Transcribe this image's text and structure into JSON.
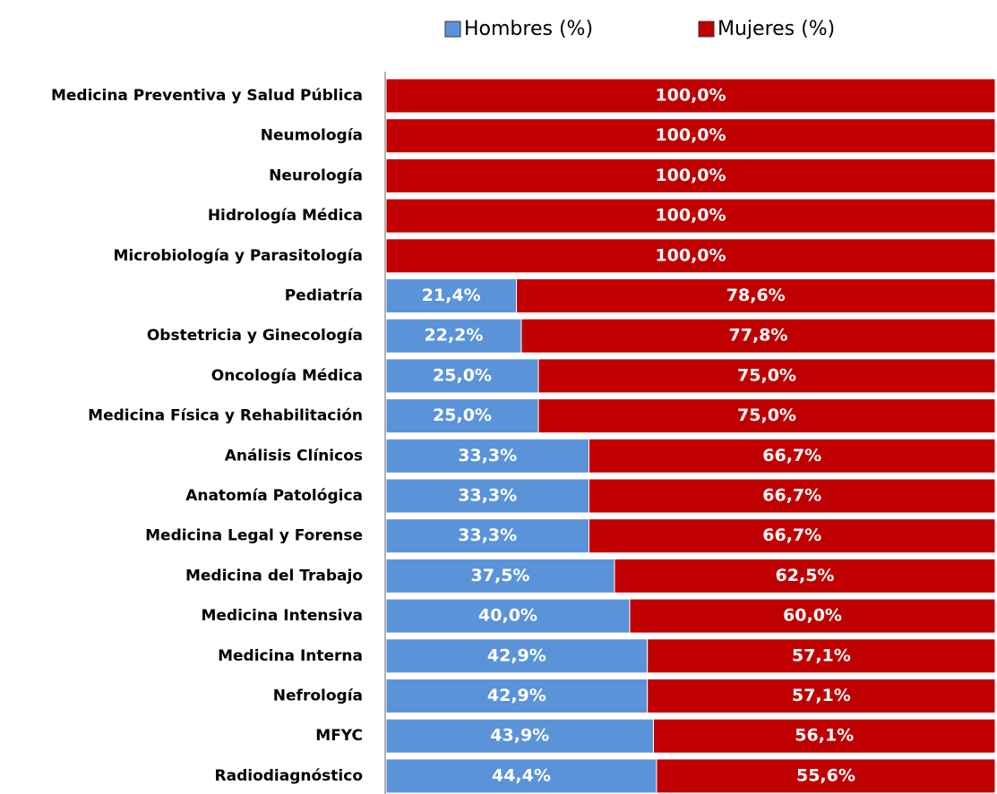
{
  "chart_data": {
    "type": "stacked-bar-horizontal",
    "categories": [
      "Medicina Preventiva y Salud Pública",
      "Neumología",
      "Neurología",
      "Hidrología Médica",
      "Microbiología y Parasitología",
      "Pediatría",
      "Obstetricia y Ginecología",
      "Oncología Médica",
      "Medicina Física y Rehabilitación",
      "Análisis Clínicos",
      "Anatomía Patológica",
      "Medicina Legal y Forense",
      "Medicina del Trabajo",
      "Medicina Intensiva",
      "Medicina Interna",
      "Nefrología",
      "MFYC",
      "Radiodiagnóstico"
    ],
    "series": [
      {
        "name": "Hombres (%)",
        "color": "#5b93d9",
        "values": [
          0,
          0,
          0,
          0,
          0,
          21.4,
          22.2,
          25.0,
          25.0,
          33.3,
          33.3,
          33.3,
          37.5,
          40.0,
          42.9,
          42.9,
          43.9,
          44.4
        ],
        "value_labels": [
          null,
          null,
          null,
          null,
          null,
          "21,4%",
          "22,2%",
          "25,0%",
          "25,0%",
          "33,3%",
          "33,3%",
          "33,3%",
          "37,5%",
          "40,0%",
          "42,9%",
          "42,9%",
          "43,9%",
          "44,4%"
        ]
      },
      {
        "name": "Mujeres (%)",
        "color": "#c00000",
        "values": [
          100.0,
          100.0,
          100.0,
          100.0,
          100.0,
          78.6,
          77.8,
          75.0,
          75.0,
          66.7,
          66.7,
          66.7,
          62.5,
          60.0,
          57.1,
          57.1,
          56.1,
          55.6
        ],
        "value_labels": [
          "100,0%",
          "100,0%",
          "100,0%",
          "100,0%",
          "100,0%",
          "78,6%",
          "77,8%",
          "75,0%",
          "75,0%",
          "66,7%",
          "66,7%",
          "66,7%",
          "62,5%",
          "60,0%",
          "57,1%",
          "57,1%",
          "56,1%",
          "55,6%"
        ]
      }
    ],
    "xlim": [
      0,
      100
    ],
    "legend": "top"
  }
}
